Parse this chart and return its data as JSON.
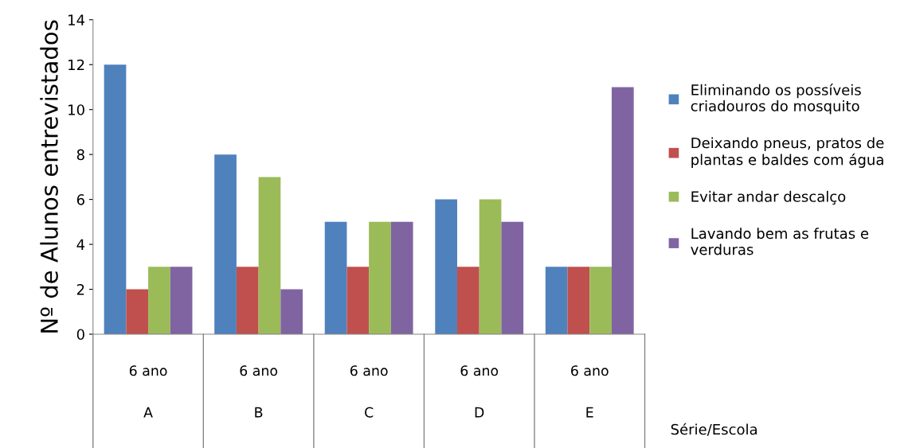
{
  "chart_data": {
    "type": "bar",
    "ylabel": "Nº de Alunos entrevistados",
    "annotations": [
      "Série/Escola"
    ],
    "categories": [
      "6 ano\nA",
      "6 ano\nB",
      "6 ano\nC",
      "6 ano\nD",
      "6 ano\nE"
    ],
    "series": [
      {
        "name": "Eliminando os possíveis\ncriadouros do mosquito",
        "color": "#4f81bd",
        "values": [
          12,
          8,
          5,
          6,
          3
        ]
      },
      {
        "name": "Deixando pneus, pratos de\nplantas e baldes com água",
        "color": "#c0504d",
        "values": [
          2,
          3,
          3,
          3,
          3
        ]
      },
      {
        "name": "Evitar andar descalço",
        "color": "#9bbb59",
        "values": [
          3,
          7,
          5,
          6,
          3
        ]
      },
      {
        "name": "Lavando bem as frutas e\nverduras",
        "color": "#8064a2",
        "values": [
          3,
          2,
          5,
          5,
          11
        ]
      }
    ],
    "ylim": [
      0,
      14
    ],
    "yticks": [
      0,
      2,
      4,
      6,
      8,
      10,
      12,
      14
    ],
    "grid": false,
    "legend": "right"
  }
}
